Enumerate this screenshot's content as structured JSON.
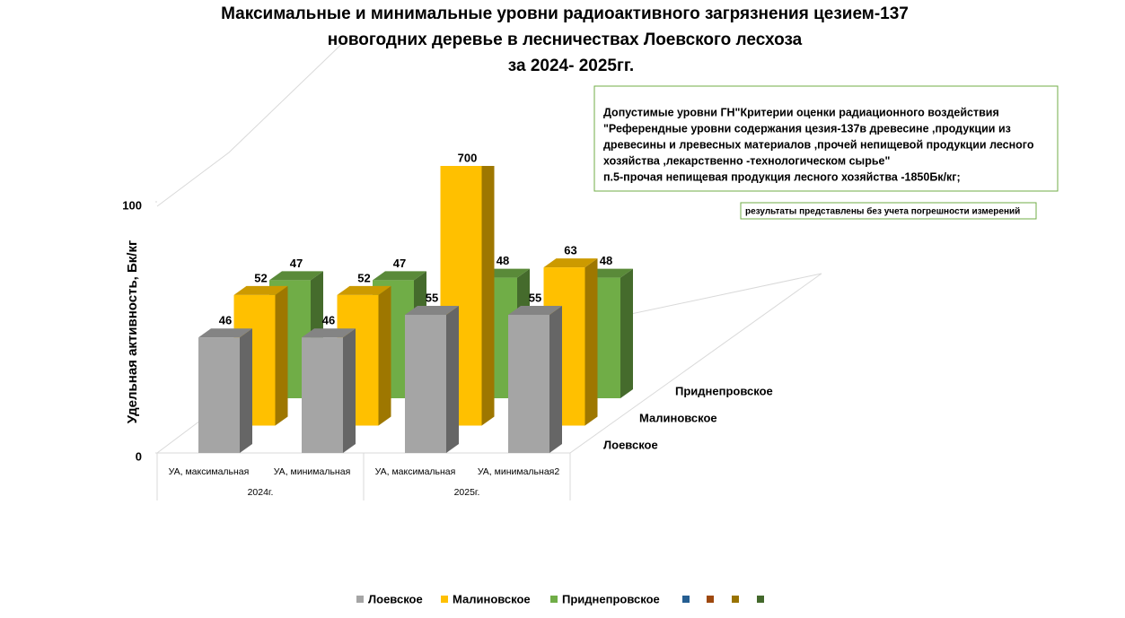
{
  "chart_data": {
    "type": "bar3d",
    "title": [
      "Максимальные и минимальные уровни радиоактивного загрязнения цезием-137",
      "новогодних деревье в лесничествах Лоевского лесхоза",
      "за 2024- 2025гг."
    ],
    "y_label": "Удельная активность, Бк/кг",
    "categories": [
      "УА, максимальная",
      "УА, минимальная",
      "УА, максимальная",
      "УА, минимальная2"
    ],
    "groups": [
      "2024г.",
      "2025г."
    ],
    "series": [
      {
        "name": "Лоевское",
        "color": "#a5a5a5",
        "values": [
          46,
          46,
          55,
          55
        ]
      },
      {
        "name": "Малиновское",
        "color": "#ffc000",
        "values": [
          52,
          52,
          700,
          63
        ]
      },
      {
        "name": "Приднепровское",
        "color": "#70ad47",
        "values": [
          47,
          47,
          48,
          48
        ]
      }
    ],
    "ylim": [
      0,
      100
    ],
    "yticks": [
      0,
      100
    ],
    "annotations": [
      "Допустимые  уровни ГН\"Критерии оценки радиационного воздействия",
      "\"Референдные уровни содержания цезия-137в древесине ,продукции из",
      "древесины и лревесных материалов ,прочей непищевой продукции лесного",
      "хозяйства ,лекарственно -технологическом сырье\"",
      "п.5-прочая непищевая продукция лесного хозяйства -1850Бк/кг;"
    ],
    "note": "результаты представлены без учета погрешности измерений",
    "legend": "bottom"
  }
}
